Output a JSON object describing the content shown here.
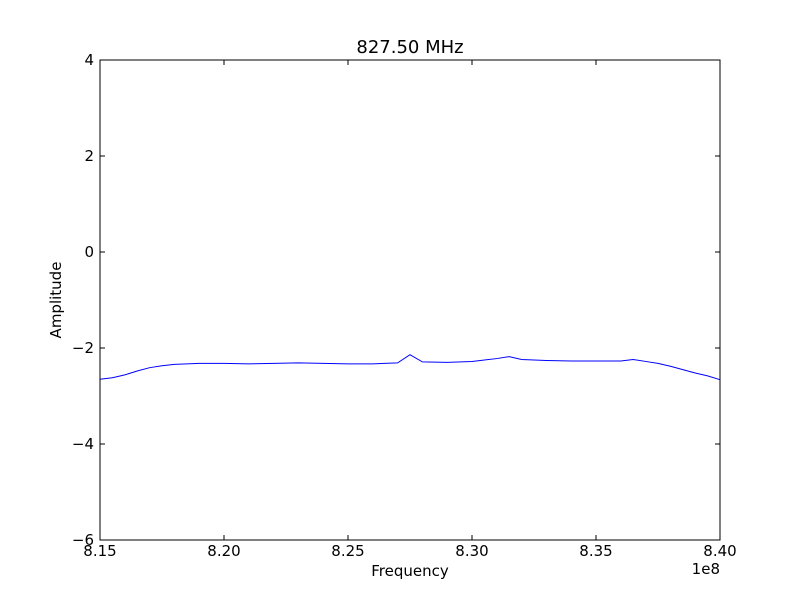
{
  "chart_data": {
    "type": "line",
    "title": "827.50 MHz",
    "xlabel": "Frequency",
    "ylabel": "Amplitude",
    "x_offset_label": "1e8",
    "xlim": [
      8.15,
      8.4
    ],
    "ylim": [
      -6,
      4
    ],
    "x_ticks": [
      8.15,
      8.2,
      8.25,
      8.3,
      8.35,
      8.4
    ],
    "x_tick_labels": [
      "8.15",
      "8.20",
      "8.25",
      "8.30",
      "8.35",
      "8.40"
    ],
    "y_ticks": [
      -6,
      -4,
      -2,
      0,
      2,
      4
    ],
    "y_tick_labels": [
      "−6",
      "−4",
      "−2",
      "0",
      "2",
      "4"
    ],
    "grid": false,
    "series": [
      {
        "color": "#0000ff",
        "x": [
          8.15,
          8.155,
          8.16,
          8.165,
          8.17,
          8.175,
          8.18,
          8.185,
          8.19,
          8.2,
          8.21,
          8.22,
          8.23,
          8.24,
          8.25,
          8.26,
          8.27,
          8.275,
          8.28,
          8.29,
          8.3,
          8.305,
          8.31,
          8.315,
          8.32,
          8.33,
          8.34,
          8.35,
          8.36,
          8.365,
          8.37,
          8.375,
          8.38,
          8.385,
          8.39,
          8.395,
          8.4
        ],
        "y": [
          -2.65,
          -2.62,
          -2.56,
          -2.48,
          -2.41,
          -2.37,
          -2.34,
          -2.33,
          -2.32,
          -2.32,
          -2.33,
          -2.32,
          -2.31,
          -2.32,
          -2.33,
          -2.33,
          -2.31,
          -2.14,
          -2.29,
          -2.3,
          -2.28,
          -2.25,
          -2.22,
          -2.18,
          -2.24,
          -2.26,
          -2.27,
          -2.27,
          -2.27,
          -2.24,
          -2.28,
          -2.32,
          -2.38,
          -2.45,
          -2.52,
          -2.58,
          -2.66
        ]
      }
    ]
  }
}
